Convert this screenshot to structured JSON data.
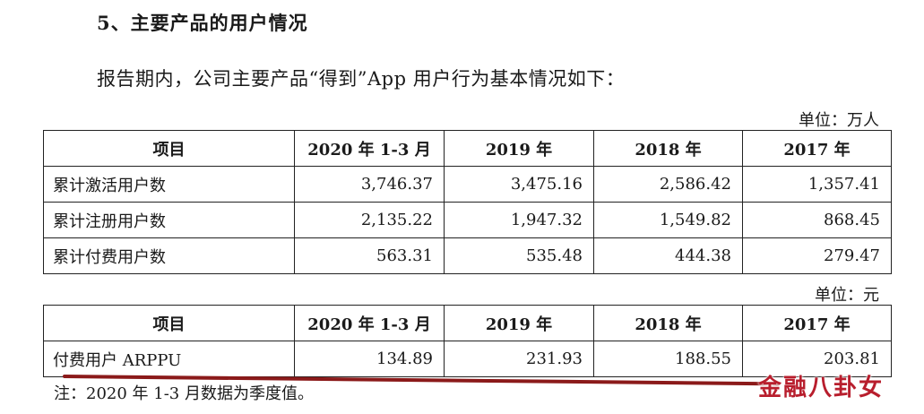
{
  "heading": "5、主要产品的用户情况",
  "intro": "报告期内，公司主要产品“得到”App 用户行为基本情况如下：",
  "table1": {
    "unit": "单位：万人",
    "headers": [
      "项目",
      "2020 年 1-3 月",
      "2019 年",
      "2018 年",
      "2017 年"
    ],
    "rows": [
      {
        "label": "累计激活用户数",
        "values": [
          "3,746.37",
          "3,475.16",
          "2,586.42",
          "1,357.41"
        ]
      },
      {
        "label": "累计注册用户数",
        "values": [
          "2,135.22",
          "1,947.32",
          "1,549.82",
          "868.45"
        ]
      },
      {
        "label": "累计付费用户数",
        "values": [
          "563.31",
          "535.48",
          "444.38",
          "279.47"
        ]
      }
    ]
  },
  "table2": {
    "unit": "单位：元",
    "headers": [
      "项目",
      "2020 年 1-3 月",
      "2019 年",
      "2018 年",
      "2017 年"
    ],
    "rows": [
      {
        "label": "付费用户 ARPPU",
        "values": [
          "134.89",
          "231.93",
          "188.55",
          "203.81"
        ]
      }
    ]
  },
  "note": "注：2020 年 1-3 月数据为季度值。",
  "watermark": "金融八卦女",
  "colors": {
    "underline": "#8b1a1a",
    "watermark": "#b81e2d"
  }
}
